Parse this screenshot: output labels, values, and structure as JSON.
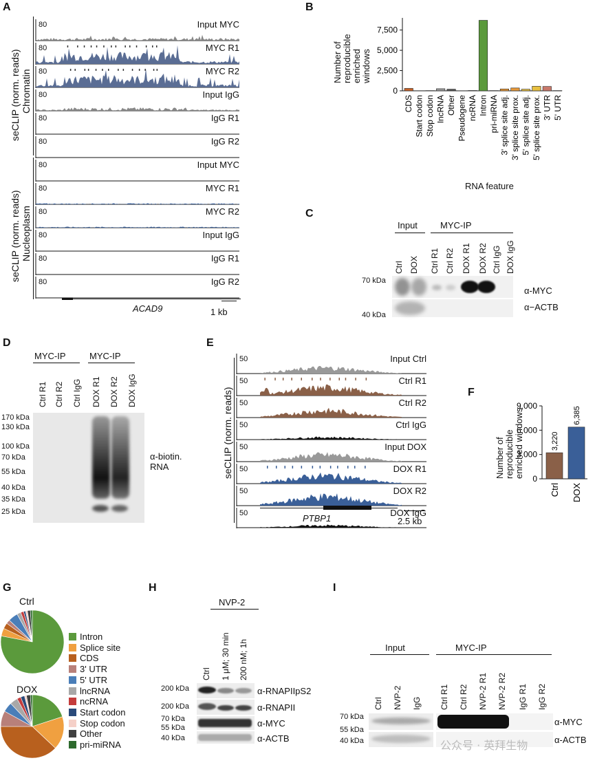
{
  "panels": {
    "A": {
      "label": "A",
      "scale": "80",
      "groups": [
        {
          "axis_title": "seCLIP (norm. reads)",
          "axis_sub": "Chromatin"
        },
        {
          "axis_title": "seCLIP (norm. reads)",
          "axis_sub": "Nucleoplasm"
        }
      ],
      "tracks": [
        "Input MYC",
        "MYC R1",
        "MYC R2",
        "Input IgG",
        "IgG R1",
        "IgG R2",
        "Input MYC",
        "MYC R1",
        "MYC R2",
        "Input IgG",
        "IgG R1",
        "IgG R2"
      ],
      "gene": "ACAD9",
      "scalebar": "1 kb"
    },
    "B": {
      "label": "B",
      "chart_data": {
        "type": "bar",
        "ylabel": "Number of reproducible enriched windows",
        "xlabel": "RNA feature",
        "ylim": [
          0,
          9000
        ],
        "yticks": [
          "0",
          "2,500",
          "5,000",
          "7,500"
        ],
        "categories": [
          "CDS",
          "Start codon",
          "Stop codon",
          "lncRNA",
          "Other",
          "Pseudogene",
          "ncRNA",
          "Intron",
          "pri-miRNA",
          "3' splice site adj.",
          "3' splice site prox.",
          "5' splice site adj.",
          "5' splice site prox.",
          "3' UTR",
          "5' UTR"
        ],
        "values": [
          300,
          20,
          30,
          260,
          200,
          15,
          40,
          8700,
          30,
          230,
          350,
          200,
          560,
          540,
          30
        ],
        "colors": [
          "#c8642a",
          "#c89a80",
          "#e8b0a0",
          "#9a9a9a",
          "#555555",
          "#bbbbbb",
          "#c43c3c",
          "#5b9a3c",
          "#2d6a2d",
          "#e89a3a",
          "#e89a3a",
          "#e8c040",
          "#e8c040",
          "#c8786a",
          "#5a8ac0"
        ]
      }
    },
    "C": {
      "label": "C",
      "group_input": "Input",
      "group_ip": "MYC-IP",
      "lanes": [
        "Ctrl",
        "DOX",
        "Ctrl R1",
        "Ctrl R2",
        "DOX R1",
        "DOX R2",
        "Ctrl IgG",
        "DOX IgG"
      ],
      "markers": [
        "70 kDa",
        "40 kDa"
      ],
      "antibodies": [
        "α-MYC",
        "α−ACTB"
      ]
    },
    "D": {
      "label": "D",
      "group1": "MYC-IP",
      "group2": "MYC-IP",
      "lanes": [
        "Ctrl R1",
        "Ctrl R2",
        "Ctrl IgG",
        "DOX R1",
        "DOX R2",
        "DOX IgG"
      ],
      "markers": [
        "170 kDa",
        "130 kDa",
        "100 kDa",
        "70 kDa",
        "55 kDa",
        "40 kDa",
        "35 kDa",
        "25 kDa"
      ],
      "antibody_line1": "α-biotin.",
      "antibody_line2": "RNA"
    },
    "E": {
      "label": "E",
      "scale": "50",
      "axis_title": "seCLIP (norm. reads)",
      "tracks": [
        "Input Ctrl",
        "Ctrl R1",
        "Ctrl R2",
        "Ctrl IgG",
        "Input DOX",
        "DOX R1",
        "DOX R2",
        "DOX IgG"
      ],
      "gene": "PTBP1",
      "scalebar": "2.5 kb"
    },
    "F": {
      "label": "F",
      "chart_data": {
        "type": "bar",
        "ylabel": "Number of reproducible enriched windows",
        "categories": [
          "Ctrl",
          "DOX"
        ],
        "values": [
          3220,
          6385
        ],
        "value_labels": [
          "3,220",
          "6,385"
        ],
        "ylim": [
          0,
          9000
        ],
        "yticks": [
          "0",
          "3,000",
          "6,000",
          "9,000"
        ],
        "colors": [
          "#8a6048",
          "#3a5f98"
        ]
      }
    },
    "G": {
      "label": "G",
      "chart_data": [
        {
          "type": "pie",
          "title": "Ctrl",
          "categories": [
            "Intron",
            "Splice site",
            "CDS",
            "3' UTR",
            "5' UTR",
            "lncRNA",
            "ncRNA",
            "Start codon",
            "Stop codon",
            "Other",
            "pri-miRNA"
          ],
          "values": [
            78,
            4,
            3,
            2,
            5,
            2,
            1.5,
            1,
            1,
            1.5,
            1
          ]
        },
        {
          "type": "pie",
          "title": "DOX",
          "categories": [
            "Intron",
            "Splice site",
            "CDS",
            "3' UTR",
            "5' UTR",
            "lncRNA",
            "ncRNA",
            "Start codon",
            "Stop codon",
            "Other",
            "pri-miRNA"
          ],
          "values": [
            20,
            17,
            38,
            8,
            5,
            4,
            2,
            2,
            1,
            2,
            1
          ]
        }
      ],
      "legend": [
        "Intron",
        "Splice site",
        "CDS",
        "3' UTR",
        "5' UTR",
        "lncRNA",
        "ncRNA",
        "Start codon",
        "Stop codon",
        "Other",
        "pri-miRNA"
      ],
      "colors": [
        "#5b9a3c",
        "#f0a040",
        "#b8601e",
        "#b8807a",
        "#4a7eb8",
        "#a8a8a8",
        "#c43c3c",
        "#2a4a7a",
        "#f5d0c8",
        "#404040",
        "#2d6a2d"
      ]
    },
    "H": {
      "label": "H",
      "group": "NVP-2",
      "lanes": [
        "Ctrl",
        "1 μM; 30 min",
        "200 nM; 1h"
      ],
      "markers": [
        "200 kDa",
        "200 kDa",
        "70 kDa",
        "55 kDa",
        "40 kDa"
      ],
      "antibodies": [
        "α-RNAPIIpS2",
        "α-RNAPII",
        "α-MYC",
        "α-ACTB"
      ]
    },
    "I": {
      "label": "I",
      "group_input": "Input",
      "group_ip": "MYC-IP",
      "lanes": [
        "Ctrl",
        "NVP-2",
        "IgG",
        "Ctrl R1",
        "Ctrl R2",
        "NVP-2 R1",
        "NVP-2 R2",
        "IgG R1",
        "IgG R2"
      ],
      "markers": [
        "70 kDa",
        "55 kDa",
        "40 kDa"
      ],
      "antibodies": [
        "α-MYC",
        "α-ACTB"
      ]
    }
  },
  "watermark": "公众号 · 英拜生物"
}
